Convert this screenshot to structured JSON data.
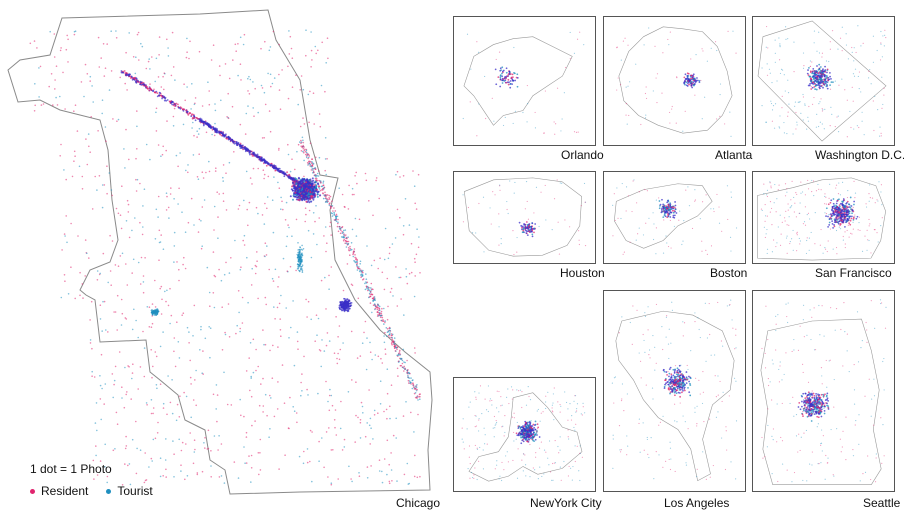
{
  "main": {
    "city": "Chicago"
  },
  "legend": {
    "scale": "1 dot = 1 Photo",
    "resident_label": "Resident",
    "tourist_label": "Tourist",
    "resident_color": "#e0246e",
    "tourist_color": "#1f8fbf"
  },
  "cities": [
    {
      "name": "Orlando"
    },
    {
      "name": "Atlanta"
    },
    {
      "name": "Washington D.C."
    },
    {
      "name": "Houston"
    },
    {
      "name": "Boston"
    },
    {
      "name": "San Francisco"
    },
    {
      "name": "NewYork City"
    },
    {
      "name": "Los Angeles"
    },
    {
      "name": "Seattle"
    }
  ],
  "colors": {
    "resident": "#e0246e",
    "tourist": "#1f8fbf",
    "dense": "#3a2fc8",
    "outline": "#888888"
  }
}
